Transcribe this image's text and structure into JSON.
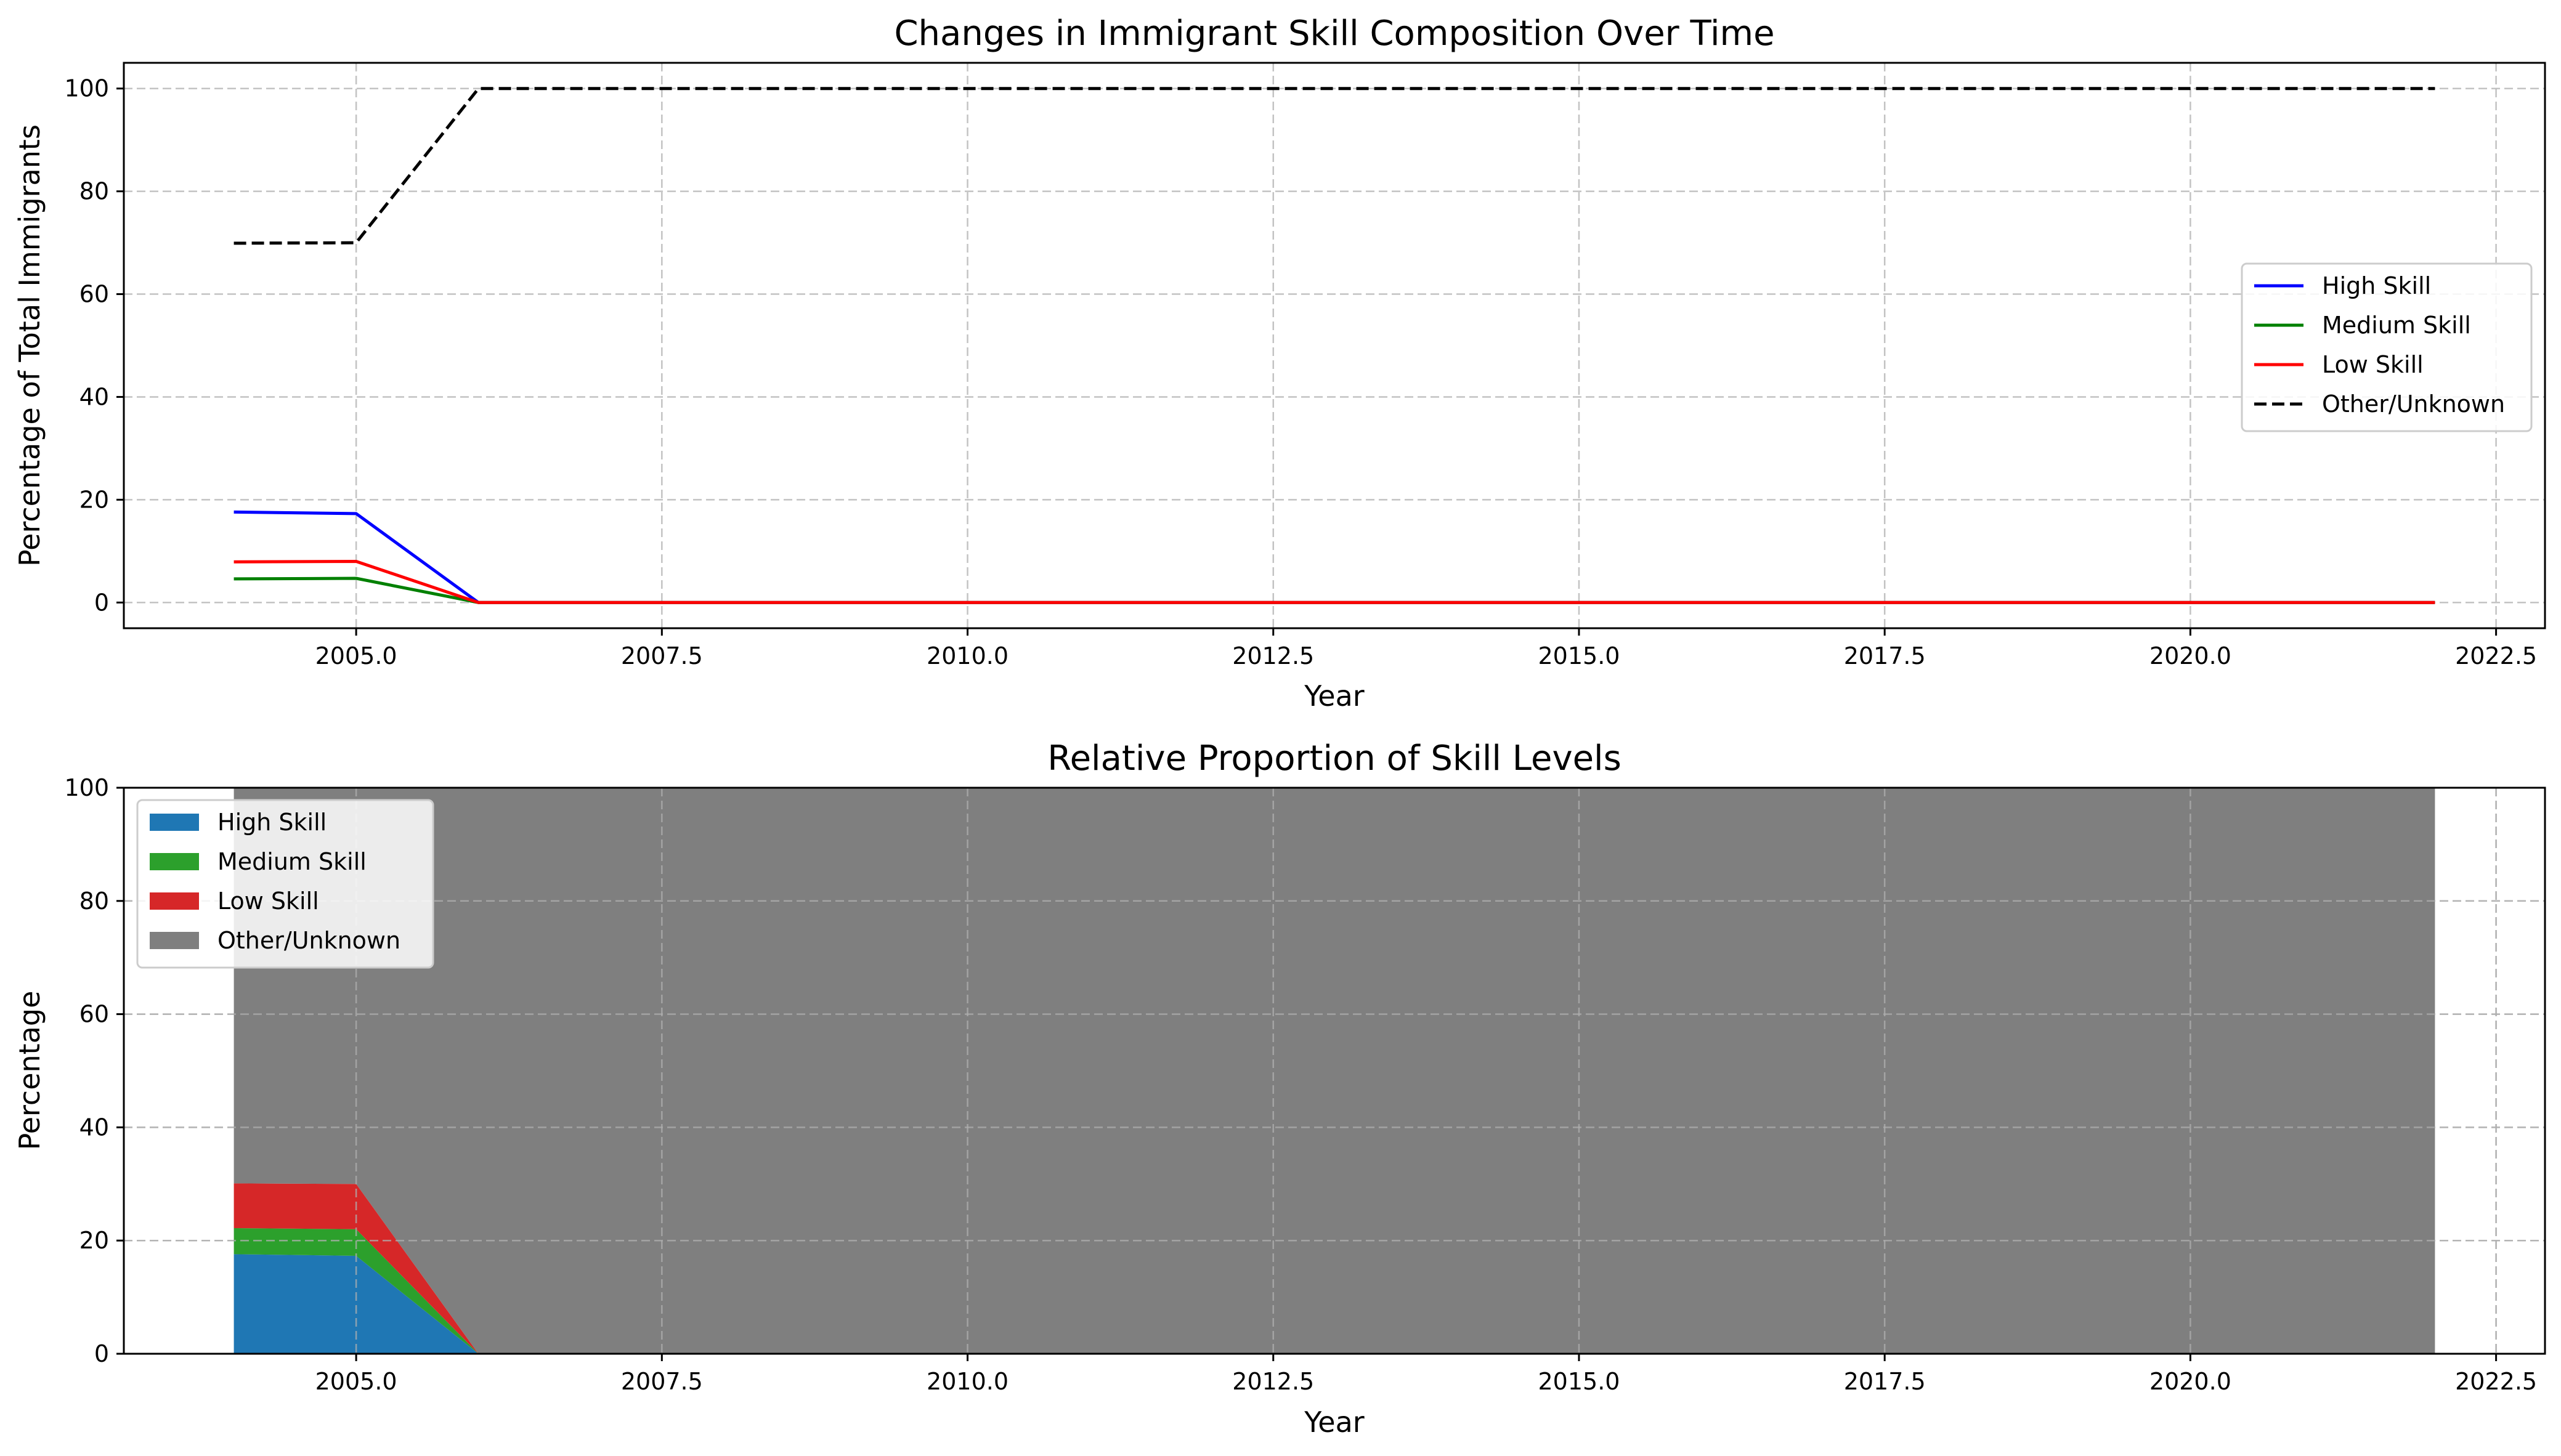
{
  "chart_data": [
    {
      "type": "line",
      "title": "Changes in Immigrant Skill Composition Over Time",
      "xlabel": "Year",
      "ylabel": "Percentage of Total Immigrants",
      "x": [
        2004,
        2005,
        2006,
        2007,
        2008,
        2009,
        2010,
        2011,
        2012,
        2013,
        2014,
        2015,
        2016,
        2017,
        2018,
        2019,
        2020,
        2021,
        2022
      ],
      "xlim": [
        2003.1,
        2022.9
      ],
      "ylim": [
        -5,
        105
      ],
      "xticks": [
        "2005.0",
        "2007.5",
        "2010.0",
        "2012.5",
        "2015.0",
        "2017.5",
        "2020.0",
        "2022.5"
      ],
      "yticks": [
        "0",
        "20",
        "40",
        "60",
        "80",
        "100"
      ],
      "grid": true,
      "legend_position": "center-right",
      "series": [
        {
          "name": "High Skill",
          "color": "#0000ff",
          "style": "solid",
          "values": [
            17.6,
            17.3,
            0,
            0,
            0,
            0,
            0,
            0,
            0,
            0,
            0,
            0,
            0,
            0,
            0,
            0,
            0,
            0,
            0
          ]
        },
        {
          "name": "Medium Skill",
          "color": "#008000",
          "style": "solid",
          "values": [
            4.6,
            4.7,
            0,
            0,
            0,
            0,
            0,
            0,
            0,
            0,
            0,
            0,
            0,
            0,
            0,
            0,
            0,
            0,
            0
          ]
        },
        {
          "name": "Low Skill",
          "color": "#ff0000",
          "style": "solid",
          "values": [
            7.9,
            8.0,
            0,
            0,
            0,
            0,
            0,
            0,
            0,
            0,
            0,
            0,
            0,
            0,
            0,
            0,
            0,
            0,
            0
          ]
        },
        {
          "name": "Other/Unknown",
          "color": "#000000",
          "style": "dashed",
          "values": [
            69.9,
            70.0,
            100,
            100,
            100,
            100,
            100,
            100,
            100,
            100,
            100,
            100,
            100,
            100,
            100,
            100,
            100,
            100,
            100
          ]
        }
      ]
    },
    {
      "type": "area",
      "stacked": true,
      "title": "Relative Proportion of Skill Levels",
      "xlabel": "Year",
      "ylabel": "Percentage",
      "x": [
        2004,
        2005,
        2006,
        2007,
        2008,
        2009,
        2010,
        2011,
        2012,
        2013,
        2014,
        2015,
        2016,
        2017,
        2018,
        2019,
        2020,
        2021,
        2022
      ],
      "xlim": [
        2003.1,
        2022.9
      ],
      "ylim": [
        0,
        100
      ],
      "xticks": [
        "2005.0",
        "2007.5",
        "2010.0",
        "2012.5",
        "2015.0",
        "2017.5",
        "2020.0",
        "2022.5"
      ],
      "yticks": [
        "0",
        "20",
        "40",
        "60",
        "80",
        "100"
      ],
      "grid": true,
      "legend_position": "upper-left",
      "series": [
        {
          "name": "High Skill",
          "color": "#1f77b4",
          "values": [
            17.6,
            17.3,
            0,
            0,
            0,
            0,
            0,
            0,
            0,
            0,
            0,
            0,
            0,
            0,
            0,
            0,
            0,
            0,
            0
          ]
        },
        {
          "name": "Medium Skill",
          "color": "#2ca02c",
          "values": [
            4.6,
            4.7,
            0,
            0,
            0,
            0,
            0,
            0,
            0,
            0,
            0,
            0,
            0,
            0,
            0,
            0,
            0,
            0,
            0
          ]
        },
        {
          "name": "Low Skill",
          "color": "#d62728",
          "values": [
            7.9,
            8.0,
            0,
            0,
            0,
            0,
            0,
            0,
            0,
            0,
            0,
            0,
            0,
            0,
            0,
            0,
            0,
            0,
            0
          ]
        },
        {
          "name": "Other/Unknown",
          "color": "#7f7f7f",
          "values": [
            69.9,
            70.0,
            100,
            100,
            100,
            100,
            100,
            100,
            100,
            100,
            100,
            100,
            100,
            100,
            100,
            100,
            100,
            100,
            100
          ]
        }
      ]
    }
  ]
}
